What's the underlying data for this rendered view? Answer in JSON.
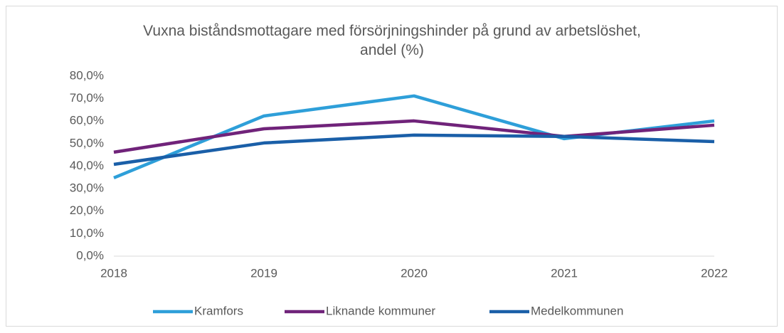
{
  "chart_data": {
    "type": "line",
    "title": "Vuxna biståndsmottagare med försörjningshinder på grund av arbetslöshet, andel (%)",
    "categories": [
      "2018",
      "2019",
      "2020",
      "2021",
      "2022"
    ],
    "series": [
      {
        "name": "Kramfors",
        "color": "#2e9fd9",
        "values": [
          34.8,
          62.3,
          71.2,
          52.2,
          60.1
        ]
      },
      {
        "name": "Liknande kommuner",
        "color": "#70237a",
        "values": [
          46.2,
          56.6,
          60.1,
          53.2,
          58.2
        ]
      },
      {
        "name": "Medelkommunen",
        "color": "#1a5fa8",
        "values": [
          40.8,
          50.3,
          53.8,
          53.2,
          50.9
        ]
      }
    ],
    "ylim": [
      0,
      80
    ],
    "yticks": [
      {
        "value": 0,
        "label": "0,0%"
      },
      {
        "value": 10,
        "label": "10,0%"
      },
      {
        "value": 20,
        "label": "20,0%"
      },
      {
        "value": 30,
        "label": "30,0%"
      },
      {
        "value": 40,
        "label": "40,0%"
      },
      {
        "value": 50,
        "label": "50,0%"
      },
      {
        "value": 60,
        "label": "60,0%"
      },
      {
        "value": 70,
        "label": "70,0%"
      },
      {
        "value": 80,
        "label": "80,0%"
      }
    ],
    "legend": "bottom"
  }
}
